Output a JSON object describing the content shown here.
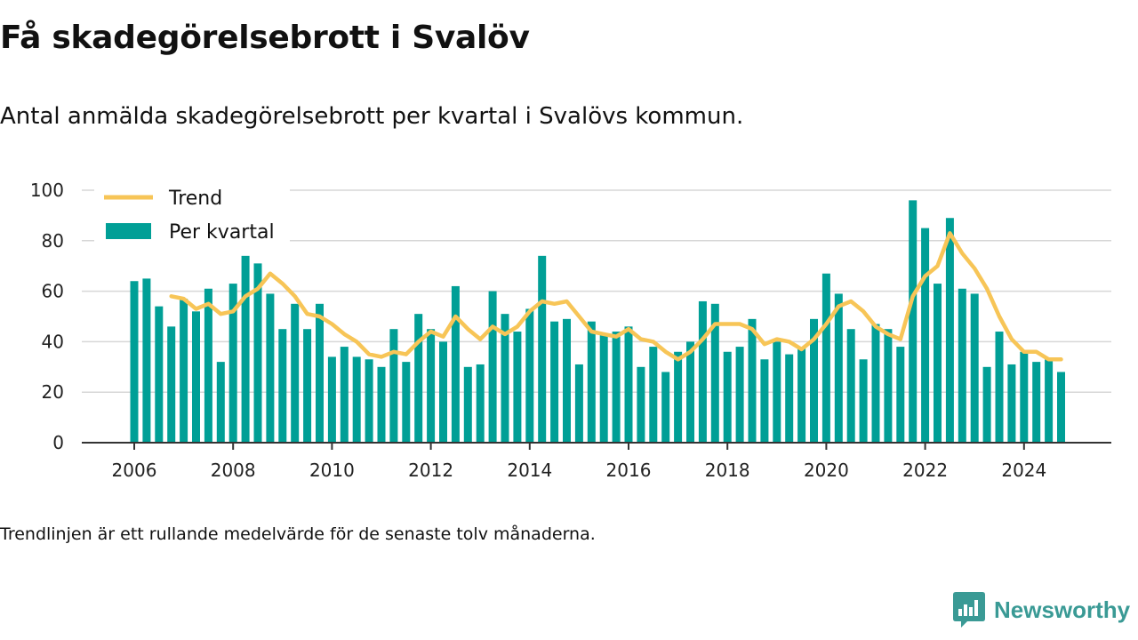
{
  "title": "Få skadegörelsebrott i Svalöv",
  "subtitle": "Antal anmälda skadegörelsebrott per kvartal i Svalövs kommun.",
  "footnote": "Trendlinjen är ett rullande medelvärde för de senaste tolv månaderna.",
  "brand": {
    "name": "Newsworthy",
    "icon": "newsworthy-logo-icon"
  },
  "colors": {
    "bar": "#009f96",
    "trend": "#f7c557",
    "grid": "#d7d7d7",
    "axis": "#333333"
  },
  "chart_data": {
    "type": "bar",
    "x_start": "2006 Q1",
    "x_ticks": [
      "2006",
      "2008",
      "2010",
      "2012",
      "2014",
      "2016",
      "2018",
      "2020",
      "2022",
      "2024"
    ],
    "y_ticks": [
      0,
      20,
      40,
      60,
      80,
      100
    ],
    "ylim": [
      0,
      100
    ],
    "grid": true,
    "legend_position": "top-left",
    "series": [
      {
        "name": "Per kvartal",
        "type": "bar",
        "values": [
          64,
          65,
          54,
          46,
          57,
          52,
          61,
          32,
          63,
          74,
          71,
          59,
          45,
          55,
          45,
          55,
          34,
          38,
          34,
          33,
          30,
          45,
          32,
          51,
          45,
          40,
          62,
          30,
          31,
          60,
          51,
          44,
          53,
          74,
          48,
          49,
          31,
          48,
          43,
          44,
          46,
          30,
          38,
          28,
          36,
          40,
          56,
          55,
          36,
          38,
          49,
          33,
          40,
          35,
          38,
          49,
          67,
          59,
          45,
          33,
          47,
          45,
          38,
          96,
          85,
          63,
          89,
          61,
          59,
          30,
          44,
          31,
          36,
          32,
          33,
          28
        ]
      },
      {
        "name": "Trend",
        "type": "line",
        "values": [
          null,
          null,
          null,
          58,
          57,
          53,
          55,
          51,
          52,
          58,
          61,
          67,
          63,
          58,
          51,
          50,
          47,
          43,
          40,
          35,
          34,
          36,
          35,
          40,
          44,
          42,
          50,
          45,
          41,
          46,
          43,
          46,
          52,
          56,
          55,
          56,
          50,
          44,
          43,
          42,
          45,
          41,
          40,
          36,
          33,
          36,
          41,
          47,
          47,
          47,
          45,
          39,
          41,
          40,
          37,
          41,
          47,
          54,
          56,
          52,
          46,
          43,
          41,
          58,
          66,
          70,
          83,
          75,
          69,
          61,
          50,
          41,
          36,
          36,
          33,
          33
        ]
      }
    ]
  }
}
